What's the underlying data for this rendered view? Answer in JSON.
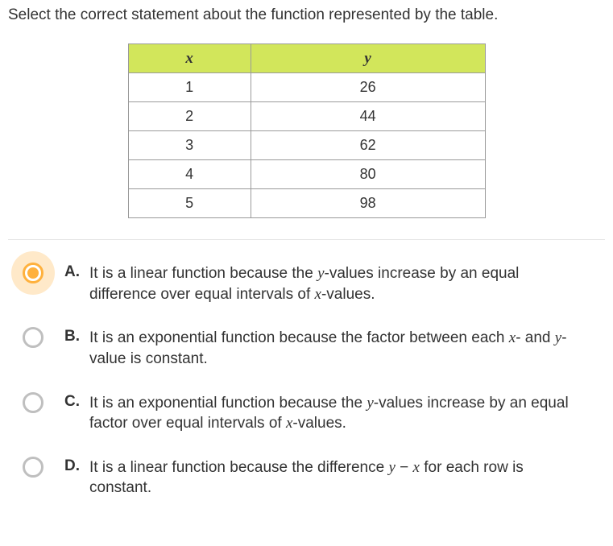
{
  "question": "Select the correct statement about the function represented by the table.",
  "table": {
    "header_bg": "#d2e65b",
    "border_color": "#9a9a9a",
    "columns": [
      "x",
      "y"
    ],
    "rows": [
      [
        "1",
        "26"
      ],
      [
        "2",
        "44"
      ],
      [
        "3",
        "62"
      ],
      [
        "4",
        "80"
      ],
      [
        "5",
        "98"
      ]
    ]
  },
  "options": [
    {
      "letter": "A.",
      "selected": true,
      "parts": [
        {
          "t": "It is a linear function because the "
        },
        {
          "t": "y",
          "i": true
        },
        {
          "t": "-values increase by an equal difference over equal intervals of "
        },
        {
          "t": "x",
          "i": true
        },
        {
          "t": "-values."
        }
      ]
    },
    {
      "letter": "B.",
      "selected": false,
      "parts": [
        {
          "t": "It is an exponential function because the factor between each "
        },
        {
          "t": "x",
          "i": true
        },
        {
          "t": "- and "
        },
        {
          "t": "y",
          "i": true
        },
        {
          "t": "-value is constant."
        }
      ]
    },
    {
      "letter": "C.",
      "selected": false,
      "parts": [
        {
          "t": "It is an exponential function because the "
        },
        {
          "t": "y",
          "i": true
        },
        {
          "t": "-values increase by an equal factor over equal intervals of "
        },
        {
          "t": "x",
          "i": true
        },
        {
          "t": "-values."
        }
      ]
    },
    {
      "letter": "D.",
      "selected": false,
      "parts": [
        {
          "t": "It is a linear function because the difference "
        },
        {
          "t": "y",
          "i": true
        },
        {
          "t": " − "
        },
        {
          "t": "x",
          "i": true
        },
        {
          "t": " for each row is constant."
        }
      ]
    }
  ],
  "colors": {
    "selected_accent": "#ffb13d",
    "radio_border": "#bfbfbf",
    "text": "#333333",
    "divider": "#e5e5e5"
  }
}
